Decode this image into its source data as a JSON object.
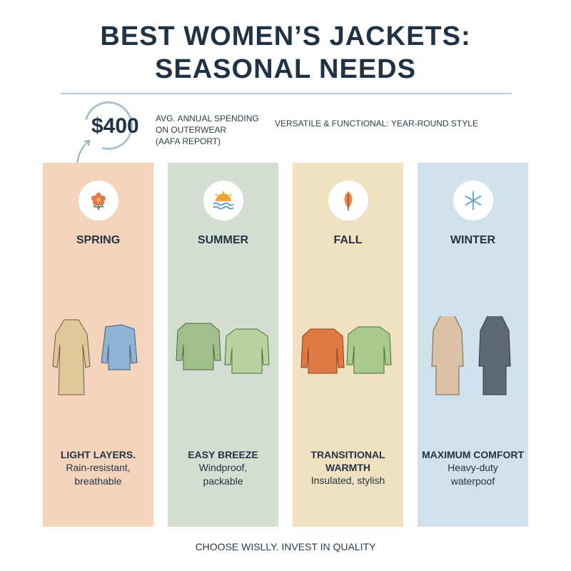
{
  "title_line1": "BEST WOMEN’S JACKETS:",
  "title_line2": "SEASONAL NEEDS",
  "stat": {
    "value": "$400",
    "line1": "AVG. ANNUAL SPENDING",
    "line2": "ON OUTERWEAR",
    "line3": "(AAFA REPORT)"
  },
  "tagline": "VERSATILE & FUNCTIONAL: YEAR-ROUND STYLE",
  "seasons": [
    {
      "name": "SPRING",
      "icon": "flower-icon",
      "color": "#f5d4bd",
      "headline": "LIGHT LAYERS.",
      "desc1": "Rain-resistant,",
      "desc2": "breathable"
    },
    {
      "name": "SUMMER",
      "icon": "sun-icon",
      "color": "#d4dfd1",
      "headline": "EASY BREEZE",
      "desc1": "Windproof,",
      "desc2": "packable"
    },
    {
      "name": "FALL",
      "icon": "leaf-icon",
      "color": "#f0e2c1",
      "headline": "TRANSITIONAL",
      "headline2": "WARMTH",
      "desc1": "Insulated, stylish"
    },
    {
      "name": "WINTER",
      "icon": "snowflake-icon",
      "color": "#d0e2eb",
      "headline": "MAXIMUM COMFORT",
      "desc1": "Heavy-duty",
      "desc2": "waterpoof"
    }
  ],
  "footer": "CHOOSE WISLLY. INVEST IN QUALITY"
}
